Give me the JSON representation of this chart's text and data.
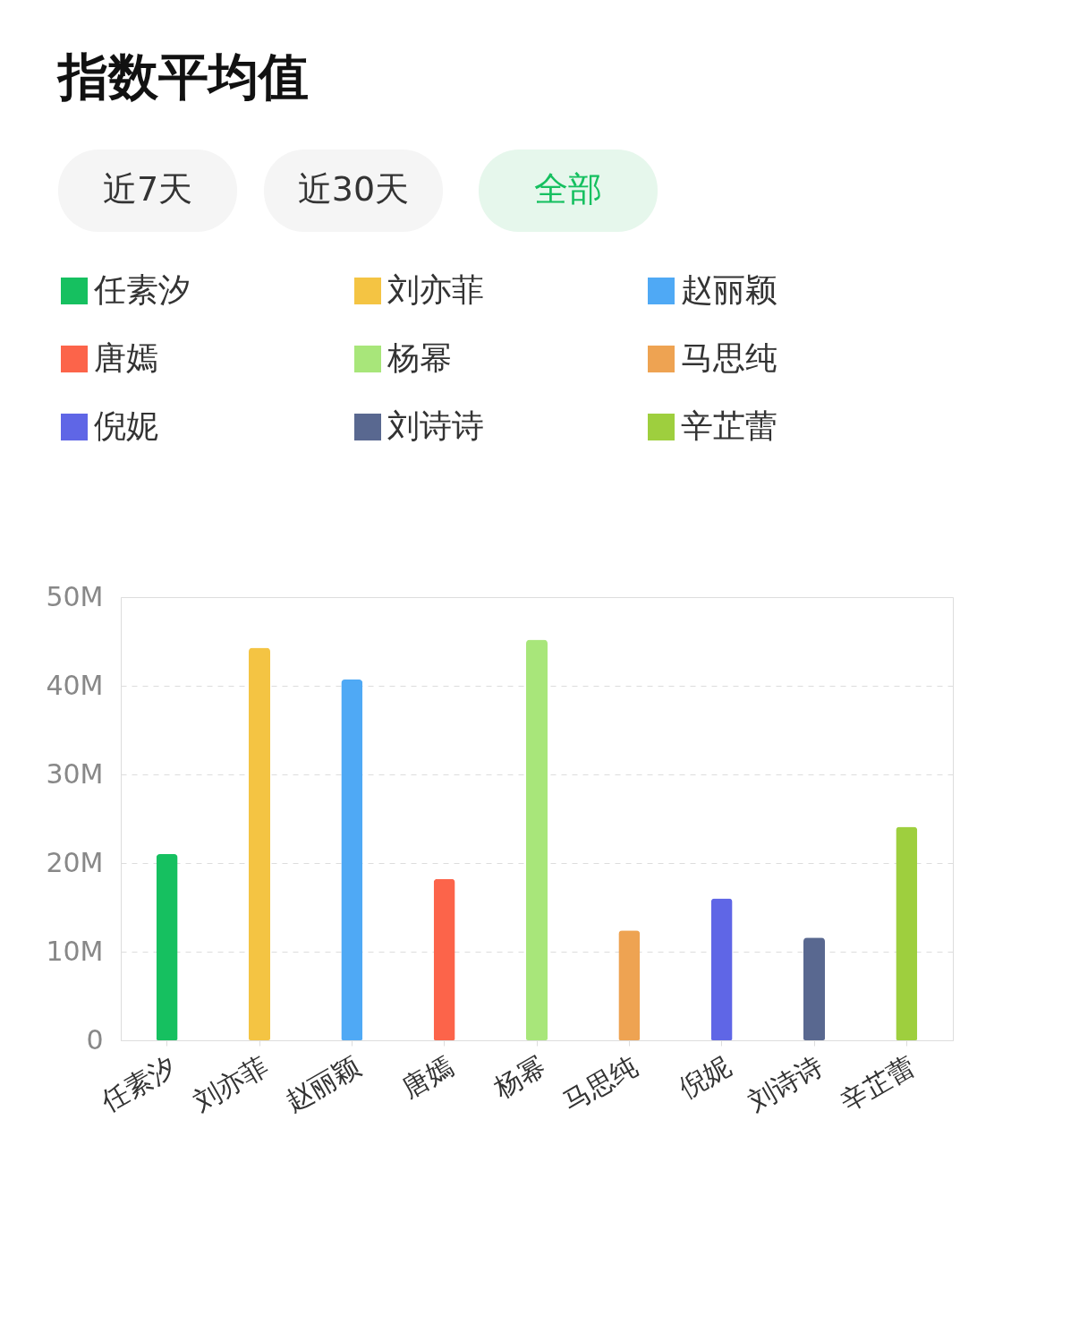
{
  "chart_data": {
    "type": "bar",
    "title": "指数平均值",
    "annotations": [
      "近7天",
      "近30天",
      "全部"
    ],
    "categories": [
      "任素汐",
      "刘亦菲",
      "赵丽颖",
      "唐嫣",
      "杨幂",
      "马思纯",
      "倪妮",
      "刘诗诗",
      "辛芷蕾"
    ],
    "series": [
      {
        "name": "任素汐",
        "color": "#16c060",
        "values": [
          21,
          null,
          null,
          null,
          null,
          null,
          null,
          null,
          null
        ]
      },
      {
        "name": "刘亦菲",
        "color": "#f4c443",
        "values": [
          null,
          44.3,
          null,
          null,
          null,
          null,
          null,
          null,
          null
        ]
      },
      {
        "name": "赵丽颖",
        "color": "#4fa9f5",
        "values": [
          null,
          null,
          40.7,
          null,
          null,
          null,
          null,
          null,
          null
        ]
      },
      {
        "name": "唐嫣",
        "color": "#fc644a",
        "values": [
          null,
          null,
          null,
          18.2,
          null,
          null,
          null,
          null,
          null
        ]
      },
      {
        "name": "杨幂",
        "color": "#a8e67a",
        "values": [
          null,
          null,
          null,
          null,
          45.2,
          null,
          null,
          null,
          null
        ]
      },
      {
        "name": "马思纯",
        "color": "#eea352",
        "values": [
          null,
          null,
          null,
          null,
          null,
          12.4,
          null,
          null,
          null
        ]
      },
      {
        "name": "倪妮",
        "color": "#5f66e6",
        "values": [
          null,
          null,
          null,
          null,
          null,
          null,
          16.0,
          null,
          null
        ]
      },
      {
        "name": "刘诗诗",
        "color": "#596890",
        "values": [
          null,
          null,
          null,
          null,
          null,
          null,
          null,
          11.6,
          null
        ]
      },
      {
        "name": "辛芷蕾",
        "color": "#9ecf3e",
        "values": [
          null,
          null,
          null,
          null,
          null,
          null,
          null,
          null,
          24.1
        ]
      }
    ],
    "ylim": [
      0,
      50
    ],
    "yticks": [
      0,
      {
        "value": 10,
        "label": "10M"
      },
      {
        "value": 20,
        "label": "20M"
      },
      {
        "value": 30,
        "label": "30M"
      },
      {
        "value": 40,
        "label": "40M"
      },
      {
        "value": 50,
        "label": "50M"
      }
    ],
    "grid": "y",
    "legend": "top"
  }
}
